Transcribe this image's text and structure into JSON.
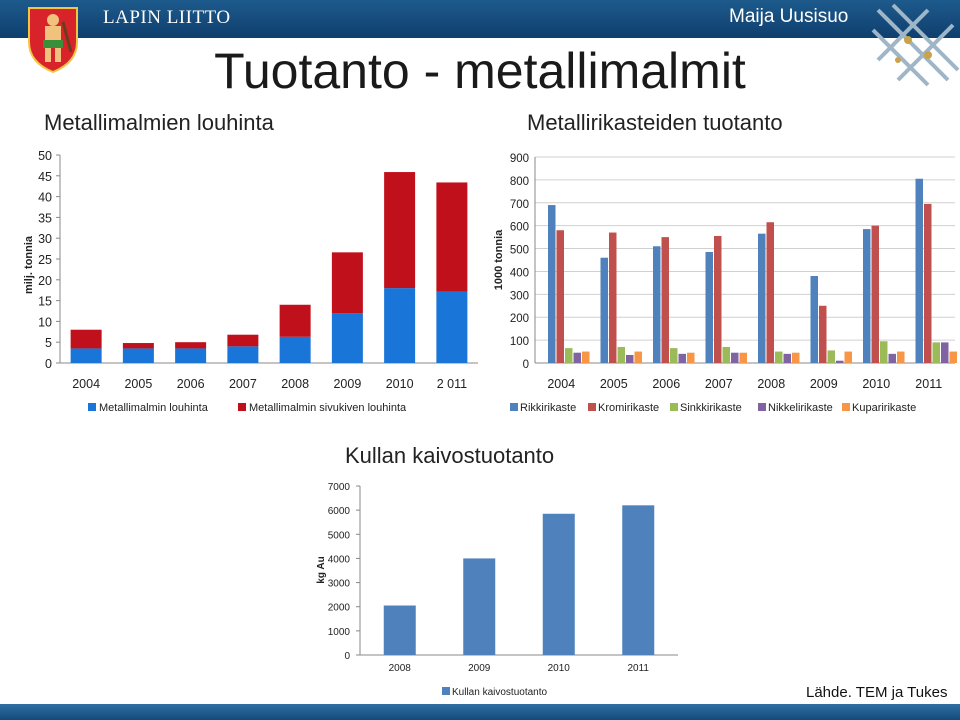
{
  "header": {
    "organization": "LAPIN LIITTO",
    "author": "Maija Uusisuo",
    "title": "Tuotanto - metallimalmit"
  },
  "footer": {
    "source": "Lähde. TEM ja Tukes"
  },
  "colors": {
    "bar_blue": "#1a75d8",
    "bar_red": "#c0101b",
    "rikki": "#4f81bd",
    "kromi": "#c0504d",
    "sinkki": "#9bbb59",
    "nikkeli": "#8064a2",
    "kupari": "#f79646",
    "kulta": "#4f81bd",
    "header_blue": "#16508a"
  },
  "chart_data": [
    {
      "type": "bar",
      "stacked": true,
      "title": "Metallimalmien louhinta",
      "ylabel": "milj. tonnia",
      "xlabel": "",
      "categories": [
        "2004",
        "2005",
        "2006",
        "2007",
        "2008",
        "2009",
        "2010",
        "2 011"
      ],
      "ylim": [
        0,
        50
      ],
      "yticks": [
        0,
        5,
        10,
        15,
        20,
        25,
        30,
        35,
        40,
        45,
        50
      ],
      "grid": false,
      "legend": "bottom",
      "series": [
        {
          "name": "Metallimalmin louhinta",
          "color": "#1a75d8",
          "values": [
            3.5,
            3.5,
            3.5,
            4,
            6.3,
            12,
            18,
            17.2
          ]
        },
        {
          "name": "Metallimalmin sivukiven louhinta",
          "color": "#c0101b",
          "values": [
            4.5,
            1.3,
            1.5,
            2.8,
            7.7,
            14.6,
            27.9,
            26.2
          ]
        }
      ]
    },
    {
      "type": "bar",
      "title": "Metallirikasteiden tuotanto",
      "ylabel": "1000 tonnia",
      "xlabel": "",
      "categories": [
        "2004",
        "2005",
        "2006",
        "2007",
        "2008",
        "2009",
        "2010",
        "2011"
      ],
      "ylim": [
        0,
        900
      ],
      "yticks": [
        0,
        100,
        200,
        300,
        400,
        500,
        600,
        700,
        800,
        900
      ],
      "grid": true,
      "legend": "bottom",
      "series": [
        {
          "name": "Rikkirikaste",
          "color": "#4f81bd",
          "values": [
            690,
            460,
            510,
            485,
            565,
            380,
            585,
            805
          ]
        },
        {
          "name": "Kromirikaste",
          "color": "#c0504d",
          "values": [
            580,
            570,
            550,
            555,
            615,
            250,
            600,
            695
          ]
        },
        {
          "name": "Sinkkirikaste",
          "color": "#9bbb59",
          "values": [
            65,
            70,
            65,
            70,
            50,
            55,
            95,
            90
          ]
        },
        {
          "name": "Nikkelirikaste",
          "color": "#8064a2",
          "values": [
            45,
            35,
            40,
            45,
            40,
            10,
            40,
            90
          ]
        },
        {
          "name": "Kuparirikaste",
          "color": "#f79646",
          "values": [
            50,
            50,
            45,
            45,
            45,
            50,
            50,
            50
          ]
        }
      ]
    },
    {
      "type": "bar",
      "title": "Kullan kaivostuotanto",
      "ylabel": "kg Au",
      "xlabel": "",
      "categories": [
        "2008",
        "2009",
        "2010",
        "2011"
      ],
      "ylim": [
        0,
        7000
      ],
      "yticks": [
        0,
        1000,
        2000,
        3000,
        4000,
        5000,
        6000,
        7000
      ],
      "grid": false,
      "legend": "bottom",
      "series": [
        {
          "name": "Kullan kaivostuotanto",
          "color": "#4f81bd",
          "values": [
            2050,
            4000,
            5850,
            6200
          ]
        }
      ]
    }
  ]
}
